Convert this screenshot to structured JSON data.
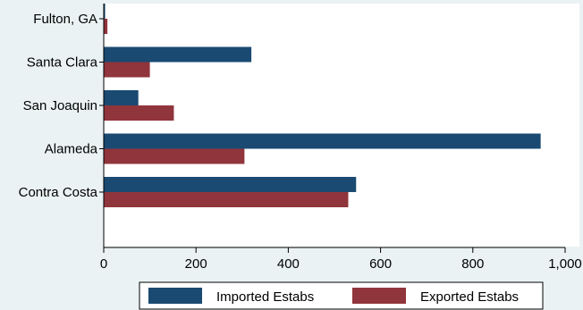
{
  "chart_data": {
    "type": "bar",
    "orientation": "horizontal",
    "categories": [
      "Fulton, GA",
      "Santa Clara",
      "San Joaquin",
      "Alameda",
      "Contra Costa"
    ],
    "series": [
      {
        "name": "Imported Estabs",
        "values": [
          3,
          320,
          75,
          947,
          547
        ],
        "color": "#1a4a72"
      },
      {
        "name": "Exported Estabs",
        "values": [
          8,
          100,
          152,
          305,
          530
        ],
        "color": "#90353b"
      }
    ],
    "x_ticks": [
      "0",
      "200",
      "400",
      "600",
      "800",
      "1,000"
    ],
    "x_tick_values": [
      0,
      200,
      400,
      600,
      800,
      1000
    ],
    "xlim": [
      0,
      1000
    ],
    "grid": false,
    "legend_position": "bottom",
    "plot_background": "#ffffff",
    "page_background": "#eaf2f3"
  }
}
